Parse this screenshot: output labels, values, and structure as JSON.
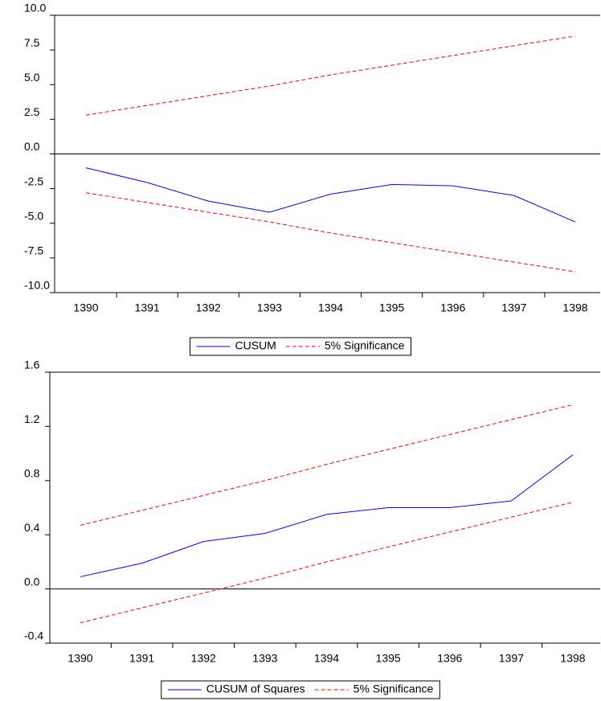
{
  "chart_data": [
    {
      "type": "line",
      "categories": [
        "1390",
        "1391",
        "1392",
        "1393",
        "1394",
        "1395",
        "1396",
        "1397",
        "1398"
      ],
      "series": [
        {
          "name": "CUSUM",
          "color": "#0000ff",
          "style": "solid",
          "values": [
            -1.0,
            -2.06,
            -3.4,
            -4.2,
            -2.9,
            -2.2,
            -2.3,
            -3.0,
            -4.9
          ]
        },
        {
          "name": "5% Significance",
          "color": "#ff0000",
          "style": "dashed",
          "upper": [
            2.8,
            3.5,
            4.2,
            4.9,
            5.7,
            6.4,
            7.1,
            7.8,
            8.5
          ],
          "lower": [
            -2.8,
            -3.5,
            -4.2,
            -4.9,
            -5.7,
            -6.4,
            -7.1,
            -7.8,
            -8.5
          ]
        }
      ],
      "ylim": [
        -10,
        10
      ],
      "yticks": [
        {
          "value": -10,
          "label": "-10.0"
        },
        -7.5,
        {
          "value": -5,
          "label": "-5.0"
        },
        -2.5,
        {
          "value": 0,
          "label": "0.0"
        },
        2.5,
        {
          "value": 5,
          "label": "5.0"
        },
        7.5,
        {
          "value": 10,
          "label": "10.0"
        }
      ],
      "zero_line": true,
      "grid": false
    },
    {
      "type": "line",
      "categories": [
        "1390",
        "1391",
        "1392",
        "1393",
        "1394",
        "1395",
        "1396",
        "1397",
        "1398"
      ],
      "series": [
        {
          "name": "CUSUM of Squares",
          "color": "#0000ff",
          "style": "solid",
          "values": [
            0.09,
            0.19,
            0.35,
            0.41,
            0.55,
            0.6,
            0.6,
            0.65,
            0.99
          ]
        },
        {
          "name": "5% Significance",
          "color": "#ff0000",
          "style": "dashed",
          "upper": [
            0.47,
            0.58,
            0.69,
            0.8,
            0.92,
            1.03,
            1.14,
            1.25,
            1.36
          ],
          "lower": [
            -0.25,
            -0.14,
            -0.03,
            0.08,
            0.2,
            0.31,
            0.42,
            0.53,
            0.64
          ]
        }
      ],
      "ylim": [
        -0.4,
        1.6
      ],
      "yticks": [
        -0.4,
        {
          "value": 0,
          "label": "0.0"
        },
        0.4,
        0.8,
        1.2,
        1.6
      ],
      "zero_line": true,
      "grid": false
    }
  ]
}
